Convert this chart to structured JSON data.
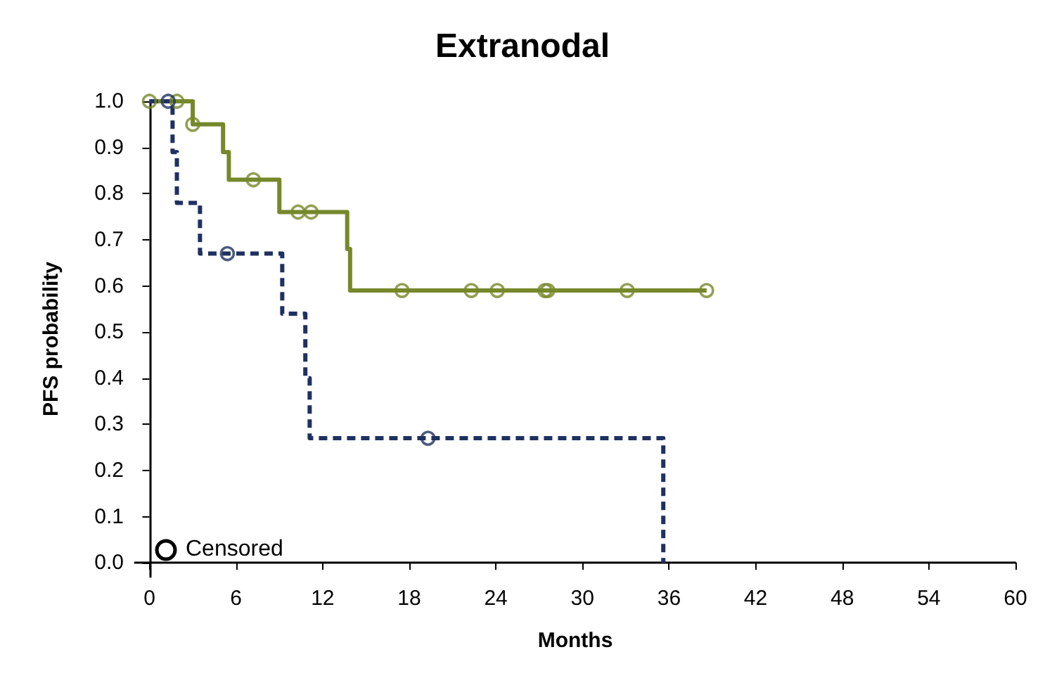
{
  "chart_data": {
    "type": "step",
    "title": "Extranodal",
    "xlabel": "Months",
    "ylabel": "PFS probability",
    "xlim": [
      -1,
      60
    ],
    "xticks": [
      0,
      6,
      12,
      18,
      24,
      30,
      36,
      42,
      48,
      54,
      60
    ],
    "ylim": [
      -0.03,
      1.0
    ],
    "yticks": [
      {
        "value": 0,
        "label": "0.0"
      },
      {
        "value": 0.1,
        "label": "0.1"
      },
      {
        "value": 0.2,
        "label": "0.2"
      },
      {
        "value": 0.3,
        "label": "0.3"
      },
      {
        "value": 0.4,
        "label": "0.4"
      },
      {
        "value": 0.5,
        "label": "0.5"
      },
      {
        "value": 0.6,
        "label": "0.6"
      },
      {
        "value": 0.7,
        "label": "0.7"
      },
      {
        "value": 0.8,
        "label": "0.8"
      },
      {
        "value": 0.9,
        "label": "0.9"
      },
      {
        "value": 1,
        "label": "1.0"
      }
    ],
    "grid": false,
    "legend": "bottom left",
    "marker": "none",
    "series": [
      {
        "color": "#76882a",
        "line_style": "solid",
        "x": [
          0,
          3.0,
          5.1,
          5.5,
          9.0,
          13.7,
          13.9,
          38.6
        ],
        "values": [
          1,
          0.95,
          0.89,
          0.83,
          0.76,
          0.68,
          0.59,
          0.59
        ]
      },
      {
        "color": "#1f3160",
        "line_style": "dashed",
        "x": [
          0,
          1.6,
          1.9,
          3.5,
          9.2,
          10.8,
          11.1,
          35.6
        ],
        "values": [
          1,
          0.89,
          0.78,
          0.67,
          0.54,
          0.4,
          0.27,
          0.0
        ]
      },
      {
        "type": "scatter",
        "name": "Censored",
        "color": "#000000",
        "marker": "circle",
        "x": [
          0,
          1.9,
          3.0,
          7.2,
          10.3,
          11.2,
          17.5,
          22.3,
          24.1,
          27.4,
          27.6,
          33.1,
          38.6,
          1.3,
          5.4,
          19.3
        ],
        "values": [
          1,
          1,
          0.95,
          0.83,
          0.76,
          0.76,
          0.59,
          0.59,
          0.59,
          0.59,
          0.59,
          0.59,
          0.59,
          1,
          0.67,
          0.27
        ],
        "colors": [
          "#76882a",
          "#76882a",
          "#76882a",
          "#76882a",
          "#76882a",
          "#76882a",
          "#76882a",
          "#76882a",
          "#76882a",
          "#76882a",
          "#76882a",
          "#76882a",
          "#76882a",
          "#1f3160",
          "#1f3160",
          "#1f3160"
        ]
      }
    ]
  }
}
